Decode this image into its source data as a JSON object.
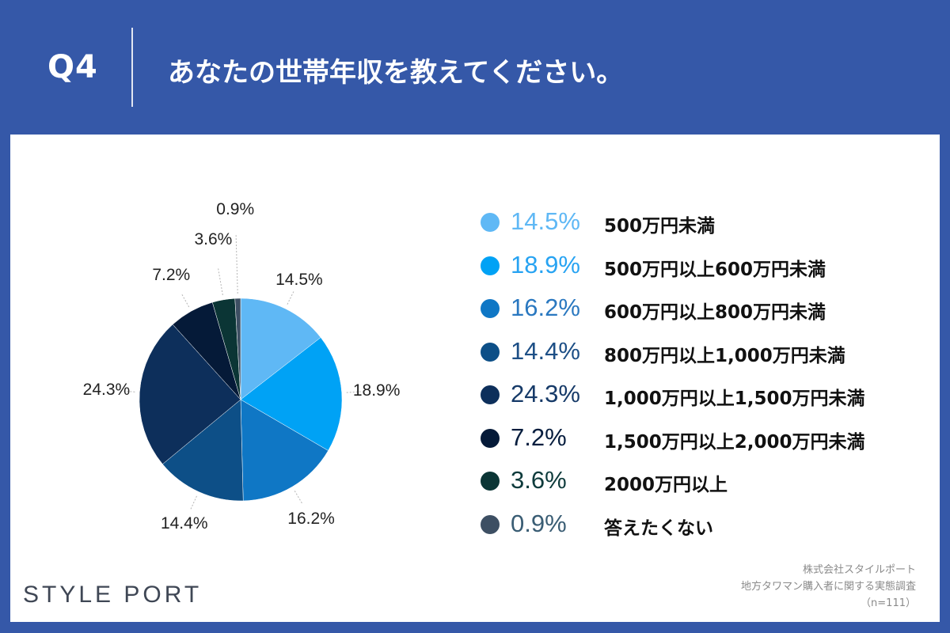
{
  "header": {
    "question_no": "Q4",
    "question_text": "あなたの世帯年収を教えてください。"
  },
  "chart_data": {
    "type": "pie",
    "categories": [
      "500万円未満",
      "500万円以上600万円未満",
      "600万円以上800万円未満",
      "800万円以上1,000万円未満",
      "1,000万円以上1,500万円未満",
      "1,500万円以上2,000万円未満",
      "2000万円以上",
      "答えたくない"
    ],
    "values": [
      14.5,
      18.9,
      16.2,
      14.4,
      24.3,
      7.2,
      3.6,
      0.9
    ],
    "value_labels": [
      "14.5%",
      "18.9%",
      "16.2%",
      "14.4%",
      "24.3%",
      "7.2%",
      "3.6%",
      "0.9%"
    ],
    "colors": [
      "#5fb8f5",
      "#00a2f5",
      "#0f77c5",
      "#0d4f87",
      "#0d2f5b",
      "#051a38",
      "#0b3535",
      "#3d4f63"
    ],
    "legend_pct_colors": [
      "#5fb8f5",
      "#27a3f2",
      "#2a78c0",
      "#1d4f86",
      "#163a68",
      "#061d3e",
      "#0e3b3c",
      "#3a5d74"
    ],
    "start": "12 o'clock",
    "direction": "clockwise",
    "legend_placement": "right"
  },
  "brand": {
    "logo_text": "STYLE PORT"
  },
  "source": {
    "company": "株式会社スタイルポート",
    "survey": "地方タワマン購入者に関する実態調査",
    "sample": "（n=111）"
  }
}
